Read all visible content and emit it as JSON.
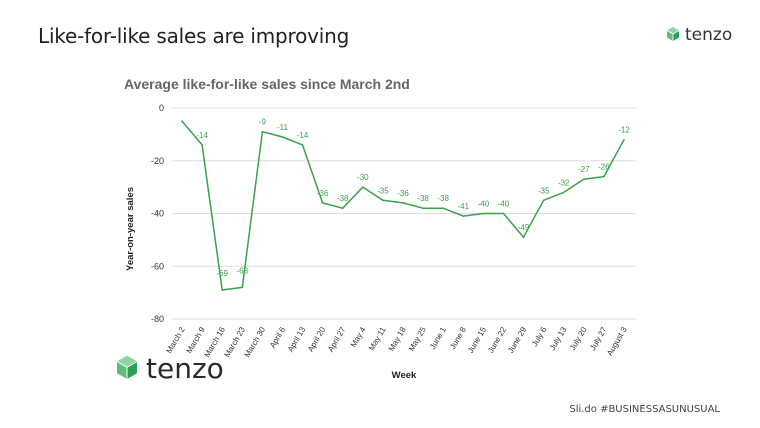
{
  "slide": {
    "title": "Like-for-like sales are improving",
    "logo_text": "tenzo",
    "footer": "Sli.do #BUSINESSASUNUSUAL"
  },
  "colors": {
    "line": "#3aa14a",
    "brand": "#2e9d57",
    "grid": "#dddddd"
  },
  "chart_data": {
    "type": "line",
    "title": "Average like-for-like sales since March 2nd",
    "xlabel": "Week",
    "ylabel": "Year-on-year sales",
    "ylim": [
      -80,
      0
    ],
    "yticks": [
      0,
      -20,
      -40,
      -60,
      -80
    ],
    "grid": true,
    "categories": [
      "March 2",
      "March 9",
      "March 16",
      "March 23",
      "March 30",
      "April 6",
      "April 13",
      "April 20",
      "April 27",
      "May 4",
      "May 11",
      "May 18",
      "May 25",
      "June 1",
      "June 8",
      "June 15",
      "June 22",
      "June 29",
      "July 6",
      "July 13",
      "July 20",
      "July 27",
      "August 3"
    ],
    "series": [
      {
        "values": [
          -5,
          -14,
          -69,
          -68,
          -9,
          -11,
          -14,
          -36,
          -38,
          -30,
          -35,
          -36,
          -38,
          -38,
          -41,
          -40,
          -40,
          -49,
          -35,
          -32,
          -27,
          -26,
          -12
        ],
        "labels": [
          "",
          "-14",
          "-69",
          "-68",
          "-9",
          "-11",
          "-14",
          "-36",
          "-38",
          "-30",
          "-35",
          "-36",
          "-38",
          "-38",
          "-41",
          "-40",
          "-40",
          "-49",
          "-35",
          "-32",
          "-27",
          "-26",
          "-12"
        ]
      }
    ]
  }
}
